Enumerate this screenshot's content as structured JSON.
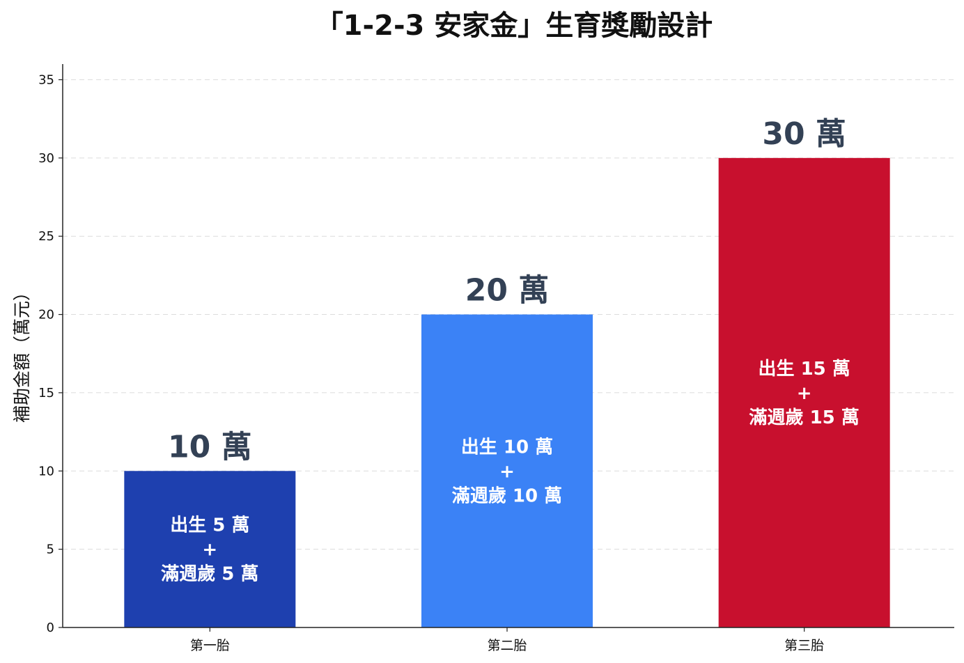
{
  "chart_data": {
    "type": "bar",
    "title": "「1-2-3 安家金」生育獎勵設計",
    "xlabel": "",
    "ylabel": "補助金額（萬元）",
    "ylim": [
      0,
      36
    ],
    "yticks": [
      0,
      5,
      10,
      15,
      20,
      25,
      30,
      35
    ],
    "grid": true,
    "categories": [
      "第一胎",
      "第二胎",
      "第三胎"
    ],
    "values": [
      10,
      20,
      30
    ],
    "colors": [
      "#1e40af",
      "#3b82f6",
      "#c8102e"
    ],
    "total_labels": [
      "10 萬",
      "20 萬",
      "30 萬"
    ],
    "total_label_color": "#334155",
    "breakdown_labels": [
      [
        "出生 5 萬",
        "+",
        "滿週歲 5 萬"
      ],
      [
        "出生 10 萬",
        "+",
        "滿週歲 10 萬"
      ],
      [
        "出生 15 萬",
        "+",
        "滿週歲 15 萬"
      ]
    ]
  }
}
